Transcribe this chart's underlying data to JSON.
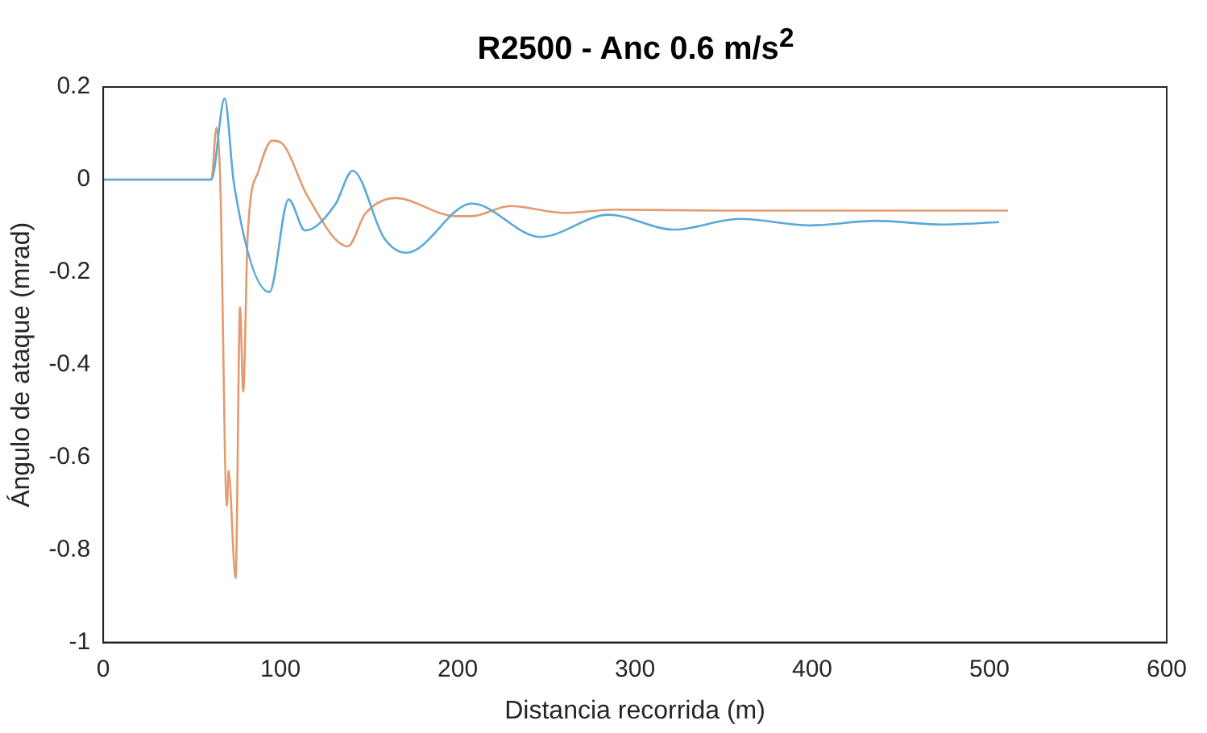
{
  "chart_data": {
    "type": "line",
    "title": "R2500 - Anc 0.6 m/s$^{2}$",
    "xlabel": "Distancia recorrida (m)",
    "ylabel": "Ángulo de ataque (mrad)",
    "xlim": [
      0,
      600
    ],
    "xticks": [
      0,
      100,
      200,
      300,
      400,
      500,
      600
    ],
    "ylim": [
      -1,
      0.2
    ],
    "yticks": [
      -1,
      -0.8,
      -0.6,
      -0.4,
      -0.2,
      0,
      0.2
    ],
    "grid": false,
    "legend": false,
    "marker": "none",
    "line_style": "solid",
    "series": [
      {
        "color": "#5aa9d6",
        "x": [
          0,
          61,
          68.5,
          73.8,
          93.8,
          104.6,
          113.9,
          130.9,
          140.7,
          158.6,
          171,
          208,
          246.6,
          285,
          322,
          359,
          399,
          436,
          473,
          505.5
        ],
        "values": [
          0,
          0,
          0.175,
          -0.01,
          -0.243,
          -0.043,
          -0.11,
          -0.054,
          0.019,
          -0.127,
          -0.158,
          -0.052,
          -0.124,
          -0.076,
          -0.108,
          -0.085,
          -0.099,
          -0.089,
          -0.097,
          -0.092
        ]
      },
      {
        "color": "#e39a6e",
        "x": [
          0,
          61,
          63.9,
          66,
          69.8,
          70.7,
          74.7,
          77.2,
          79,
          81.5,
          87.7,
          95.4,
          100.6,
          115.4,
          138,
          147.8,
          164.8,
          198.8,
          208,
          229.6,
          260.5,
          288,
          350,
          510.5
        ],
        "values": [
          0,
          0,
          0.112,
          0,
          -0.705,
          -0.629,
          -0.861,
          -0.276,
          -0.458,
          -0.121,
          0.019,
          0.084,
          0.079,
          -0.037,
          -0.144,
          -0.074,
          -0.04,
          -0.079,
          -0.079,
          -0.057,
          -0.072,
          -0.065,
          -0.067,
          -0.067
        ]
      }
    ]
  }
}
